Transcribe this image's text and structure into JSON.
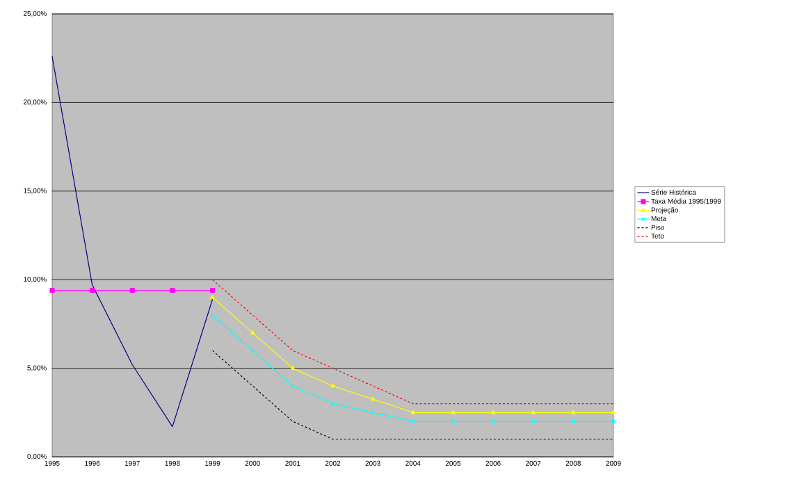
{
  "chart_data": {
    "type": "line",
    "x": [
      1995,
      1996,
      1997,
      1998,
      1999,
      2000,
      2001,
      2002,
      2003,
      2004,
      2005,
      2006,
      2007,
      2008,
      2009
    ],
    "xlim": [
      1995,
      2009
    ],
    "xticks": [
      1995,
      1996,
      1997,
      1998,
      1999,
      2000,
      2001,
      2002,
      2003,
      2004,
      2005,
      2006,
      2007,
      2008,
      2009
    ],
    "ylim": [
      0,
      25
    ],
    "yticks": [
      {
        "value": 0,
        "label": "0,00%"
      },
      {
        "value": 5,
        "label": "5,00%"
      },
      {
        "value": 10,
        "label": "10,00%"
      },
      {
        "value": 15,
        "label": "15,00%"
      },
      {
        "value": 20,
        "label": "20,00%"
      },
      {
        "value": 25,
        "label": "25,00%"
      }
    ],
    "grid": "y",
    "legend": "right",
    "series": [
      {
        "name": "Série Histórica",
        "color": "#000080",
        "marker": "none",
        "line_style": "solid",
        "values": [
          22.6,
          9.7,
          5.2,
          1.7,
          8.9,
          null,
          null,
          null,
          null,
          null,
          null,
          null,
          null,
          null,
          null
        ]
      },
      {
        "name": "Taxa Média 1995/1999",
        "color": "#ff00ff",
        "marker": "square",
        "line_style": "solid",
        "values": [
          9.4,
          9.4,
          9.4,
          9.4,
          9.4,
          null,
          null,
          null,
          null,
          null,
          null,
          null,
          null,
          null,
          null
        ]
      },
      {
        "name": "Projeção",
        "color": "#ffff00",
        "marker": "triangle",
        "line_style": "solid",
        "values": [
          null,
          null,
          null,
          null,
          9.0,
          7.0,
          5.0,
          4.0,
          3.25,
          2.5,
          2.5,
          2.5,
          2.5,
          2.5,
          2.5
        ]
      },
      {
        "name": "Meta",
        "color": "#00ffff",
        "marker": "cross",
        "line_style": "solid",
        "values": [
          null,
          null,
          null,
          null,
          8.0,
          6.0,
          4.0,
          3.0,
          2.5,
          2.0,
          2.0,
          2.0,
          2.0,
          2.0,
          2.0
        ]
      },
      {
        "name": "Piso",
        "color": "#000000",
        "marker": "none",
        "line_style": "dashed",
        "values": [
          null,
          null,
          null,
          null,
          6.0,
          4.0,
          2.0,
          1.0,
          1.0,
          1.0,
          1.0,
          1.0,
          1.0,
          1.0,
          1.0
        ]
      },
      {
        "name": "Teto",
        "color": "#ff0000",
        "marker": "none",
        "line_style": "dashed",
        "values": [
          null,
          null,
          null,
          null,
          10.0,
          8.0,
          6.0,
          5.0,
          4.0,
          3.0,
          3.0,
          3.0,
          3.0,
          3.0,
          3.0
        ]
      }
    ]
  }
}
